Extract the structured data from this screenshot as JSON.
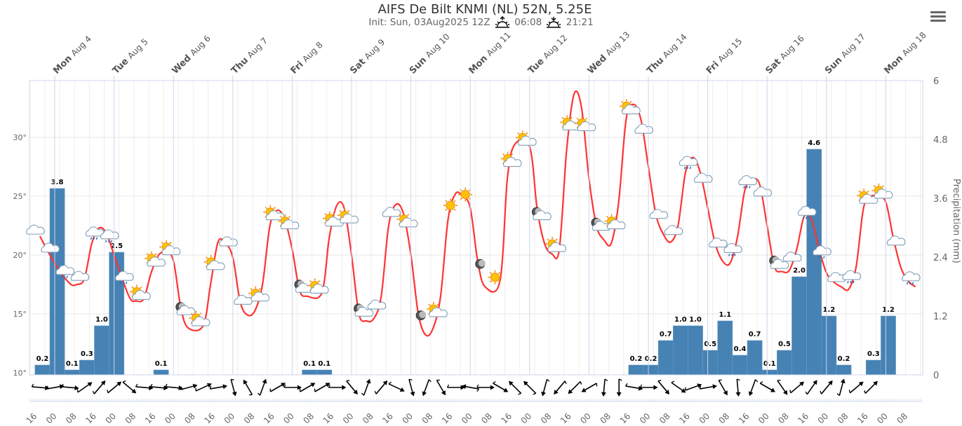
{
  "header": {
    "title": "AIFS De Bilt KNMI (NL) 52N, 5.25E",
    "init_label": "Init: Sun, 03Aug2025 12Z",
    "sunrise": "06:08",
    "sunset": "21:21",
    "sunrise_icon": "sunrise-icon",
    "sunset_icon": "sunset-icon",
    "menu_icon": "hamburger-menu-icon"
  },
  "chart_data": {
    "type": "line+bar",
    "title": "AIFS De Bilt KNMI (NL) 52N, 5.25E",
    "y_left": {
      "ticks": [
        "10°",
        "15°",
        "20°",
        "25°",
        "30°"
      ],
      "values": [
        10,
        15,
        20,
        25,
        30
      ],
      "range": [
        10,
        35
      ]
    },
    "y_right": {
      "label": "Precipitation (mm)",
      "ticks": [
        "0",
        "1.2",
        "2.4",
        "3.6",
        "4.8",
        "6"
      ],
      "values": [
        0,
        1.2,
        2.4,
        3.6,
        4.8,
        6
      ],
      "range": [
        0,
        6
      ]
    },
    "day_labels": [
      {
        "dow": "Mon",
        "date": "Aug 4"
      },
      {
        "dow": "Tue",
        "date": "Aug 5"
      },
      {
        "dow": "Wed",
        "date": "Aug 6"
      },
      {
        "dow": "Thu",
        "date": "Aug 7"
      },
      {
        "dow": "Fri",
        "date": "Aug 8"
      },
      {
        "dow": "Sat",
        "date": "Aug 9"
      },
      {
        "dow": "Sun",
        "date": "Aug 10"
      },
      {
        "dow": "Mon",
        "date": "Aug 11"
      },
      {
        "dow": "Tue",
        "date": "Aug 12"
      },
      {
        "dow": "Wed",
        "date": "Aug 13"
      },
      {
        "dow": "Thu",
        "date": "Aug 14"
      },
      {
        "dow": "Fri",
        "date": "Aug 15"
      },
      {
        "dow": "Sat",
        "date": "Aug 16"
      },
      {
        "dow": "Sun",
        "date": "Aug 17"
      },
      {
        "dow": "Mon",
        "date": "Aug 18"
      }
    ],
    "x_tick_labels": [
      "16",
      "00",
      "08",
      "16",
      "00",
      "08",
      "16",
      "00",
      "08",
      "16",
      "00",
      "08",
      "16",
      "00",
      "08",
      "16",
      "00",
      "08",
      "16",
      "00",
      "08",
      "16",
      "00",
      "08",
      "16",
      "00",
      "08",
      "16",
      "00",
      "08",
      "16",
      "00",
      "08",
      "16",
      "00",
      "08",
      "16",
      "00",
      "08",
      "16",
      "00",
      "08",
      "16",
      "00",
      "08"
    ],
    "colors": {
      "temperature": "#ff3333",
      "precipitation": "#4682b4",
      "wind": "#000000"
    },
    "temperature": [
      [
        "08-03T18",
        21.6
      ],
      [
        "08-04T00",
        19.3
      ],
      [
        "08-04T06",
        17.6
      ],
      [
        "08-04T09",
        17.5
      ],
      [
        "08-04T12",
        18.0
      ],
      [
        "08-04T15",
        21.0
      ],
      [
        "08-04T18",
        22.3
      ],
      [
        "08-04T21",
        21.8
      ],
      [
        "08-05T00",
        20.0
      ],
      [
        "08-05T06",
        16.5
      ],
      [
        "08-05T09",
        16.1
      ],
      [
        "08-05T12",
        16.3
      ],
      [
        "08-05T15",
        18.5
      ],
      [
        "08-05T18",
        20.0
      ],
      [
        "08-05T21",
        20.2
      ],
      [
        "08-06T00",
        19.5
      ],
      [
        "08-06T03",
        15.5
      ],
      [
        "08-06T06",
        13.8
      ],
      [
        "08-06T12",
        14.0
      ],
      [
        "08-06T15",
        17.5
      ],
      [
        "08-06T18",
        21.1
      ],
      [
        "08-06T21",
        21.0
      ],
      [
        "08-07T00",
        19.8
      ],
      [
        "08-07T03",
        16.0
      ],
      [
        "08-07T06",
        14.9
      ],
      [
        "08-07T09",
        15.3
      ],
      [
        "08-07T12",
        17.5
      ],
      [
        "08-07T15",
        22.5
      ],
      [
        "08-07T18",
        23.8
      ],
      [
        "08-07T21",
        23.0
      ],
      [
        "08-08T00",
        20.5
      ],
      [
        "08-08T03",
        17.0
      ],
      [
        "08-08T06",
        16.5
      ],
      [
        "08-08T12",
        16.8
      ],
      [
        "08-08T15",
        21.5
      ],
      [
        "08-08T18",
        24.2
      ],
      [
        "08-08T21",
        24.0
      ],
      [
        "08-09T00",
        20.0
      ],
      [
        "08-09T03",
        15.0
      ],
      [
        "08-09T06",
        14.4
      ],
      [
        "08-09T09",
        14.6
      ],
      [
        "08-09T12",
        16.5
      ],
      [
        "08-09T15",
        22.5
      ],
      [
        "08-09T18",
        24.3
      ],
      [
        "08-09T21",
        23.5
      ],
      [
        "08-10T00",
        20.0
      ],
      [
        "08-10T03",
        15.0
      ],
      [
        "08-10T06",
        13.2
      ],
      [
        "08-10T09",
        13.8
      ],
      [
        "08-10T12",
        16.5
      ],
      [
        "08-10T15",
        23.0
      ],
      [
        "08-10T18",
        25.2
      ],
      [
        "08-10T21",
        25.0
      ],
      [
        "08-11T00",
        24.0
      ],
      [
        "08-11T03",
        19.5
      ],
      [
        "08-11T06",
        17.3
      ],
      [
        "08-11T12",
        17.8
      ],
      [
        "08-11T15",
        26.5
      ],
      [
        "08-11T18",
        29.4
      ],
      [
        "08-12T00",
        29.2
      ],
      [
        "08-12T03",
        24.0
      ],
      [
        "08-12T06",
        21.0
      ],
      [
        "08-12T09",
        20.1
      ],
      [
        "08-12T12",
        20.5
      ],
      [
        "08-12T15",
        29.0
      ],
      [
        "08-12T18",
        33.7
      ],
      [
        "08-12T21",
        32.5
      ],
      [
        "08-13T00",
        26.5
      ],
      [
        "08-13T03",
        22.5
      ],
      [
        "08-13T06",
        21.3
      ],
      [
        "08-13T09",
        21.0
      ],
      [
        "08-13T12",
        24.5
      ],
      [
        "08-13T15",
        31.5
      ],
      [
        "08-13T18",
        32.8
      ],
      [
        "08-13T21",
        31.5
      ],
      [
        "08-14T00",
        27.5
      ],
      [
        "08-14T03",
        23.5
      ],
      [
        "08-14T06",
        21.8
      ],
      [
        "08-14T09",
        21.1
      ],
      [
        "08-14T12",
        22.5
      ],
      [
        "08-14T15",
        27.0
      ],
      [
        "08-14T18",
        28.3
      ],
      [
        "08-14T21",
        27.0
      ],
      [
        "08-15T00",
        24.0
      ],
      [
        "08-15T03",
        21.0
      ],
      [
        "08-15T06",
        19.5
      ],
      [
        "08-15T09",
        19.3
      ],
      [
        "08-15T12",
        21.5
      ],
      [
        "08-15T15",
        25.5
      ],
      [
        "08-15T18",
        26.4
      ],
      [
        "08-15T21",
        26.0
      ],
      [
        "08-16T00",
        22.5
      ],
      [
        "08-16T03",
        19.0
      ],
      [
        "08-16T06",
        18.6
      ],
      [
        "08-16T09",
        18.7
      ],
      [
        "08-16T12",
        20.5
      ],
      [
        "08-16T15",
        23.3
      ],
      [
        "08-16T18",
        23.0
      ],
      [
        "08-16T21",
        20.5
      ],
      [
        "08-17T00",
        18.5
      ],
      [
        "08-17T03",
        17.7
      ],
      [
        "08-17T06",
        17.3
      ],
      [
        "08-17T09",
        17.1
      ],
      [
        "08-17T12",
        19.0
      ],
      [
        "08-17T15",
        24.0
      ],
      [
        "08-17T18",
        25.0
      ],
      [
        "08-17T21",
        24.9
      ],
      [
        "08-18T00",
        24.5
      ],
      [
        "08-18T03",
        21.5
      ],
      [
        "08-18T06",
        19.0
      ],
      [
        "08-18T09",
        17.8
      ],
      [
        "08-18T12",
        17.3
      ]
    ],
    "precipitation": [
      [
        "08-03T18",
        0.2,
        "0.2"
      ],
      [
        "08-04T00",
        3.8,
        "3.8"
      ],
      [
        "08-04T06",
        0.1,
        "0.1"
      ],
      [
        "08-04T12",
        0.3,
        "0.3"
      ],
      [
        "08-04T18",
        1.0,
        "1.0"
      ],
      [
        "08-05T00",
        2.5,
        "2.5"
      ],
      [
        "08-05T18",
        0.1,
        "0.1"
      ],
      [
        "08-08T06",
        0.1,
        "0.1"
      ],
      [
        "08-08T12",
        0.1,
        "0.1"
      ],
      [
        "08-13T18",
        0.2,
        "0.2"
      ],
      [
        "08-14T00",
        0.2,
        "0.2"
      ],
      [
        "08-14T06",
        0.7,
        "0.7"
      ],
      [
        "08-14T12",
        1.0,
        "1.0"
      ],
      [
        "08-14T18",
        1.0,
        "1.0"
      ],
      [
        "08-15T00",
        0.5,
        "0.5"
      ],
      [
        "08-15T06",
        1.1,
        "1.1"
      ],
      [
        "08-15T12",
        0.4,
        "0.4"
      ],
      [
        "08-15T18",
        0.7,
        "0.7"
      ],
      [
        "08-16T00",
        0.1,
        "0.1"
      ],
      [
        "08-16T06",
        0.5,
        "0.5"
      ],
      [
        "08-16T12",
        2.0,
        "2.0"
      ],
      [
        "08-16T18",
        4.6,
        "4.6"
      ],
      [
        "08-17T00",
        1.2,
        "1.2"
      ],
      [
        "08-17T06",
        0.2,
        "0.2"
      ],
      [
        "08-17T18",
        0.3,
        "0.3"
      ],
      [
        "08-18T00",
        1.2,
        "1.2"
      ]
    ],
    "weather_icons_start": "08-03T16",
    "weather_icons": [
      "cloud",
      "cloud",
      "rain",
      "cloud",
      "rain",
      "rain",
      "rain",
      "sun-cloud",
      "sun-cloud",
      "sun-cloud",
      "moon-cloud",
      "sun-cloud",
      "sun-cloud",
      "cloud",
      "cloud",
      "sun-cloud",
      "sun-cloud",
      "sun-cloud",
      "moon-cloud",
      "sun-cloud",
      "sun-cloud",
      "sun-cloud",
      "moon-cloud",
      "cloud",
      "cloud",
      "sun-cloud",
      "moon",
      "sun-cloud",
      "sun",
      "sun",
      "moon",
      "sun",
      "sun-cloud",
      "sun-cloud",
      "moon-cloud",
      "sun-cloud",
      "sun-cloud",
      "sun-cloud",
      "moon-cloud",
      "sun-cloud",
      "sun-cloud",
      "cloud",
      "cloud",
      "cloud",
      "rain",
      "cloud",
      "cloud",
      "rain",
      "rain",
      "cloud",
      "moon-cloud",
      "cloud",
      "rain",
      "rain",
      "cloud",
      "rain",
      "sun-cloud",
      "sun-cloud",
      "cloud",
      "rain"
    ],
    "wind_arrow_direction_deg": [
      95,
      80,
      95,
      55,
      40,
      50,
      130,
      95,
      95,
      95,
      75,
      65,
      80,
      165,
      330,
      20,
      60,
      90,
      60,
      60,
      90,
      140,
      20,
      40,
      115,
      165,
      200,
      150,
      90,
      280,
      90,
      120,
      315,
      315,
      195,
      220,
      225,
      240,
      185,
      180,
      100,
      90,
      140,
      125,
      70,
      80,
      150,
      175,
      200,
      120,
      145,
      50,
      35,
      40,
      15,
      50,
      45
    ]
  }
}
